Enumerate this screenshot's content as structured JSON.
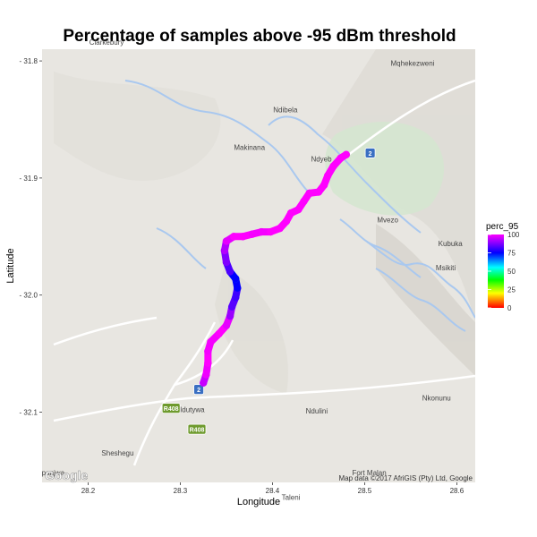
{
  "chart_data": {
    "type": "scatter",
    "title": "Percentage of samples above -95 dBm threshold",
    "xlabel": "Longitude",
    "ylabel": "Latitude",
    "xlim": [
      28.15,
      28.62
    ],
    "ylim": [
      -32.16,
      -31.79
    ],
    "x_ticks": [
      {
        "value": 28.2,
        "label": "28.2"
      },
      {
        "value": 28.3,
        "label": "28.3"
      },
      {
        "value": 28.4,
        "label": "28.4"
      },
      {
        "value": 28.5,
        "label": "28.5"
      },
      {
        "value": 28.6,
        "label": "28.6"
      }
    ],
    "y_ticks": [
      {
        "value": -31.8,
        "label": "- 31.8"
      },
      {
        "value": -31.9,
        "label": "- 31.9"
      },
      {
        "value": -32.0,
        "label": "- 32.0"
      },
      {
        "value": -32.1,
        "label": "- 32.1"
      }
    ],
    "legend": {
      "title": "perc_95",
      "placement": "right",
      "labels": [
        "100",
        "75",
        "50",
        "25",
        "0"
      ],
      "gradient": [
        "#ff00ff",
        "#0000ff",
        "#00ffff",
        "#00ff00",
        "#ffff00",
        "#ff0000"
      ]
    },
    "points": [
      {
        "lon": 28.325,
        "lat": -32.075,
        "perc_95": 92
      },
      {
        "lon": 28.328,
        "lat": -32.068,
        "perc_95": 97
      },
      {
        "lon": 28.33,
        "lat": -32.058,
        "perc_95": 100
      },
      {
        "lon": 28.33,
        "lat": -32.048,
        "perc_95": 100
      },
      {
        "lon": 28.333,
        "lat": -32.04,
        "perc_95": 98
      },
      {
        "lon": 28.342,
        "lat": -32.033,
        "perc_95": 100
      },
      {
        "lon": 28.35,
        "lat": -32.026,
        "perc_95": 100
      },
      {
        "lon": 28.354,
        "lat": -32.018,
        "perc_95": 95
      },
      {
        "lon": 28.356,
        "lat": -32.01,
        "perc_95": 85
      },
      {
        "lon": 28.36,
        "lat": -32.002,
        "perc_95": 82
      },
      {
        "lon": 28.362,
        "lat": -31.994,
        "perc_95": 80
      },
      {
        "lon": 28.36,
        "lat": -31.986,
        "perc_95": 70
      },
      {
        "lon": 28.354,
        "lat": -31.98,
        "perc_95": 80
      },
      {
        "lon": 28.35,
        "lat": -31.972,
        "perc_95": 85
      },
      {
        "lon": 28.348,
        "lat": -31.962,
        "perc_95": 90
      },
      {
        "lon": 28.35,
        "lat": -31.954,
        "perc_95": 95
      },
      {
        "lon": 28.358,
        "lat": -31.95,
        "perc_95": 100
      },
      {
        "lon": 28.368,
        "lat": -31.95,
        "perc_95": 100
      },
      {
        "lon": 28.378,
        "lat": -31.948,
        "perc_95": 100
      },
      {
        "lon": 28.388,
        "lat": -31.946,
        "perc_95": 98
      },
      {
        "lon": 28.398,
        "lat": -31.946,
        "perc_95": 100
      },
      {
        "lon": 28.408,
        "lat": -31.943,
        "perc_95": 100
      },
      {
        "lon": 28.415,
        "lat": -31.937,
        "perc_95": 100
      },
      {
        "lon": 28.42,
        "lat": -31.93,
        "perc_95": 100
      },
      {
        "lon": 28.428,
        "lat": -31.927,
        "perc_95": 100
      },
      {
        "lon": 28.434,
        "lat": -31.92,
        "perc_95": 100
      },
      {
        "lon": 28.44,
        "lat": -31.913,
        "perc_95": 100
      },
      {
        "lon": 28.45,
        "lat": -31.912,
        "perc_95": 100
      },
      {
        "lon": 28.456,
        "lat": -31.906,
        "perc_95": 100
      },
      {
        "lon": 28.46,
        "lat": -31.898,
        "perc_95": 100
      },
      {
        "lon": 28.466,
        "lat": -31.89,
        "perc_95": 100
      },
      {
        "lon": 28.474,
        "lat": -31.883,
        "perc_95": 100
      },
      {
        "lon": 28.48,
        "lat": -31.88,
        "perc_95": 100
      }
    ]
  },
  "map": {
    "places": [
      {
        "name": "Clarkebury",
        "lon": 28.22,
        "lat": -31.786
      },
      {
        "name": "Mqhekezweni",
        "lon": 28.552,
        "lat": -31.804
      },
      {
        "name": "Ndibela",
        "lon": 28.414,
        "lat": -31.844
      },
      {
        "name": "Makinana",
        "lon": 28.375,
        "lat": -31.876
      },
      {
        "name": "Ndyeb",
        "lon": 28.453,
        "lat": -31.886
      },
      {
        "name": "Mvezo",
        "lon": 28.525,
        "lat": -31.938
      },
      {
        "name": "Kubuka",
        "lon": 28.593,
        "lat": -31.958
      },
      {
        "name": "Msikiti",
        "lon": 28.588,
        "lat": -31.979
      },
      {
        "name": "Idutywa",
        "lon": 28.313,
        "lat": -32.1
      },
      {
        "name": "Ndulini",
        "lon": 28.448,
        "lat": -32.101
      },
      {
        "name": "Nkonunu",
        "lon": 28.578,
        "lat": -32.09
      },
      {
        "name": "Sheshegu",
        "lon": 28.232,
        "lat": -32.137
      },
      {
        "name": "Fort Malan",
        "lon": 28.505,
        "lat": -32.154
      },
      {
        "name": "Taleni",
        "lon": 28.42,
        "lat": -32.175
      },
      {
        "name": "panjwa",
        "lon": 28.162,
        "lat": -32.154
      }
    ],
    "shields": [
      {
        "label": "2",
        "lon": 28.506,
        "lat": -31.879,
        "color": "#3a6fc2"
      },
      {
        "label": "2",
        "lon": 28.32,
        "lat": -32.081,
        "color": "#3a6fc2"
      },
      {
        "label": "R408",
        "lon": 28.29,
        "lat": -32.097,
        "color": "#6e9a2d"
      },
      {
        "label": "R408",
        "lon": 28.318,
        "lat": -32.115,
        "color": "#6e9a2d"
      }
    ],
    "google_label": "Google",
    "attribution": "Map data ©2017 AfriGIS (Pty) Ltd, Google"
  },
  "colors": {
    "map_land": "#e8e6e1",
    "map_water": "#a9c8ef",
    "map_green": "#d5e6d0",
    "road": "#ffffff"
  }
}
